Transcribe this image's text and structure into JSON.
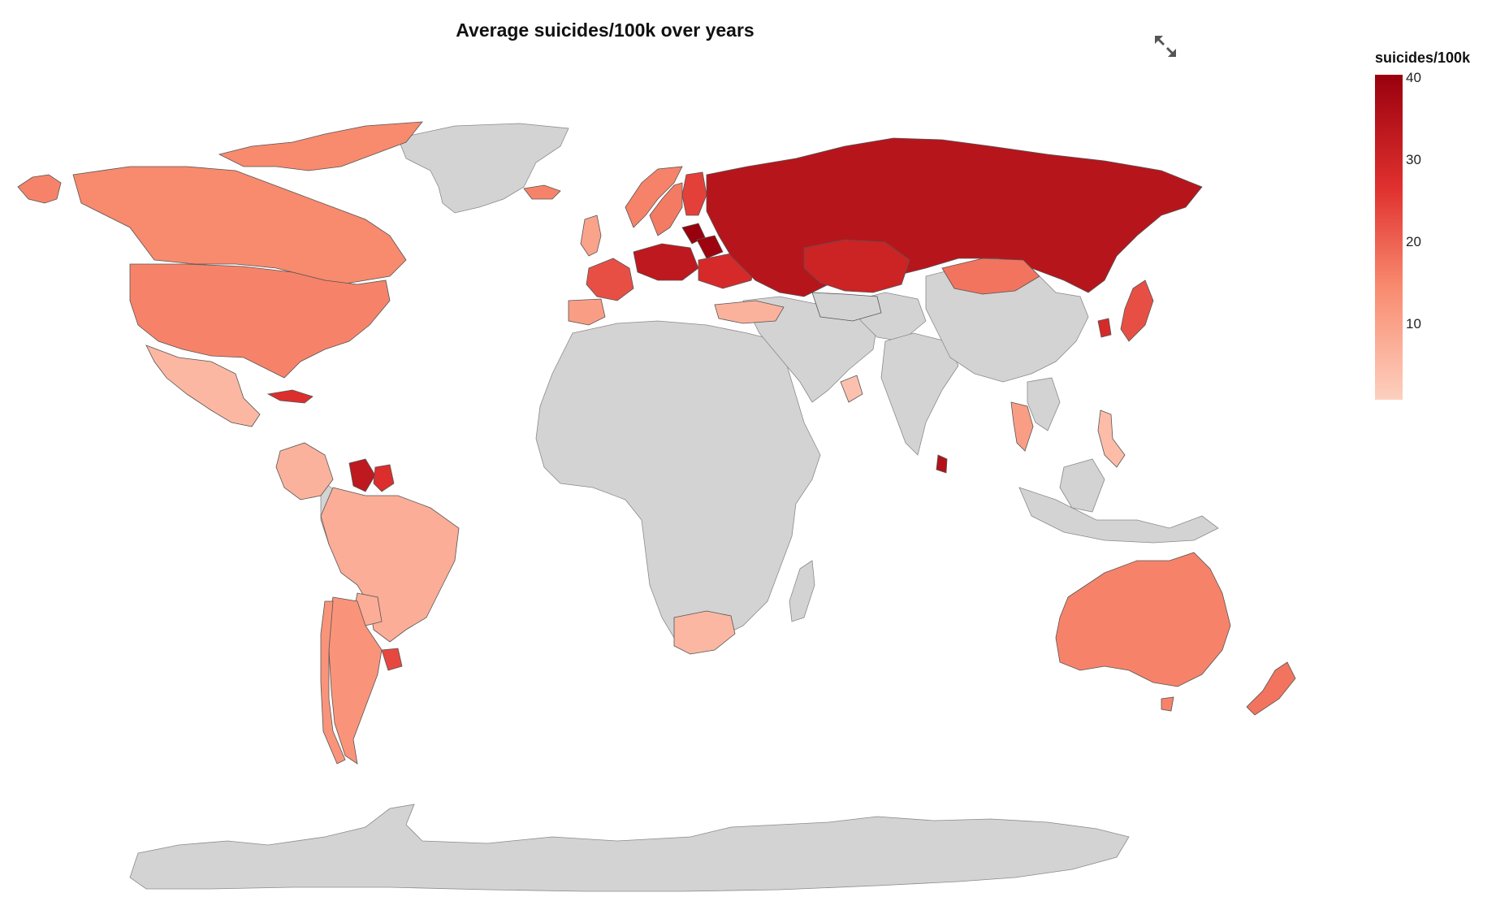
{
  "title": "Average suicides/100k over years",
  "legend": {
    "title": "suicides/100k",
    "ticks": [
      "40",
      "30",
      "20",
      "10"
    ],
    "min": 0,
    "max": 40,
    "color_low": "#fdd0bf",
    "color_high": "#99000d"
  },
  "toolbar": {
    "expand_icon": "expand-arrows-icon"
  },
  "colors": {
    "no_data": "#d3d3d3",
    "border": "#555555"
  },
  "countries": {
    "russia": 34,
    "ukraine": 28,
    "belarus": 39,
    "kazakhstan": 30,
    "lithuania": 40,
    "finland": 24,
    "sweden": 16,
    "norway": 15,
    "france": 22,
    "hungary": 33,
    "spain": 10,
    "united_kingdom": 9,
    "iceland": 15,
    "turkey": 6,
    "mongolia": 17,
    "japan": 22,
    "south_korea": 28,
    "sri_lanka": 35,
    "thailand": 10,
    "philippines": 4,
    "oman": 3,
    "canada": 14,
    "united_states": 15,
    "mexico": 5,
    "cuba": 27,
    "brazil": 7,
    "argentina": 12,
    "chile": 12,
    "uruguay": 23,
    "guyana": 33,
    "suriname": 27,
    "colombia": 6,
    "paraguay": 7,
    "south_africa": 5,
    "australia": 15,
    "new_zealand": 17,
    "greenland": null,
    "china": null,
    "india": null,
    "africa": null,
    "antarctica": null
  }
}
